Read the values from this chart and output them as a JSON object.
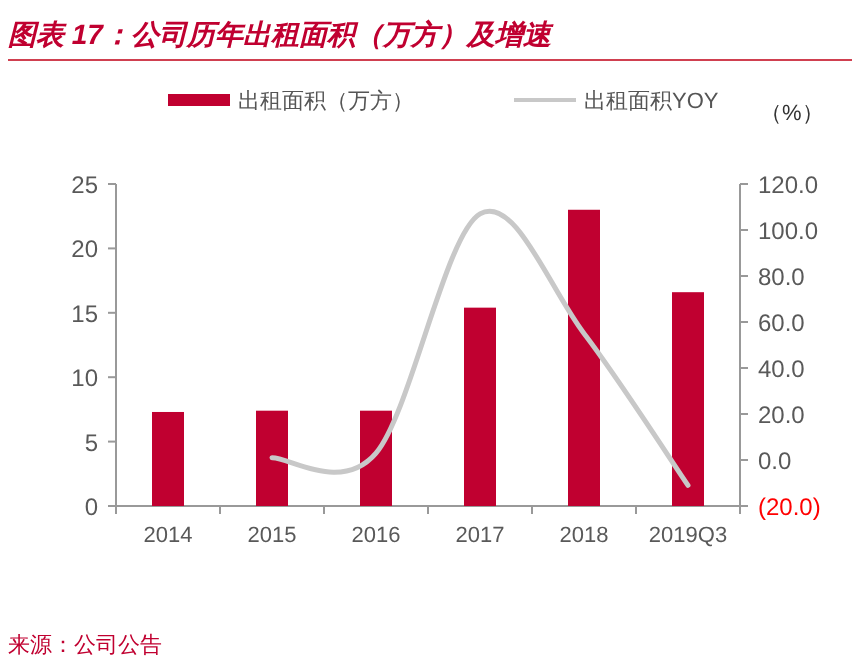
{
  "chart_data": {
    "type": "bar",
    "title": "图表 17：公司历年出租面积（万方）及增速",
    "categories": [
      "2014",
      "2015",
      "2016",
      "2017",
      "2018",
      "2019Q3"
    ],
    "series": [
      {
        "name": "出租面积（万方）",
        "color": "#c00030",
        "values": [
          7.3,
          7.4,
          7.4,
          15.4,
          23.0,
          16.6
        ]
      },
      {
        "name": "出租面积YOY",
        "type": "line",
        "axis": "y2",
        "color": "#c8c8c8",
        "values": [
          null,
          1,
          3,
          107,
          55,
          -11
        ]
      }
    ],
    "ylim": [
      0,
      25
    ],
    "yticks": [
      0,
      5,
      10,
      15,
      20,
      25
    ],
    "y2lim": [
      -20,
      120
    ],
    "y2ticks": [
      {
        "value": -20,
        "label": "(20.0)"
      },
      {
        "value": 0,
        "label": "0.0"
      },
      {
        "value": 20,
        "label": "20.0"
      },
      {
        "value": 40,
        "label": "40.0"
      },
      {
        "value": 60,
        "label": "60.0"
      },
      {
        "value": 80,
        "label": "80.0"
      },
      {
        "value": 100,
        "label": "100.0"
      },
      {
        "value": 120,
        "label": "120.0"
      }
    ],
    "y2label": "（%）",
    "legend": "top",
    "grid": false,
    "annotations": [
      "来源：公司公告"
    ]
  }
}
